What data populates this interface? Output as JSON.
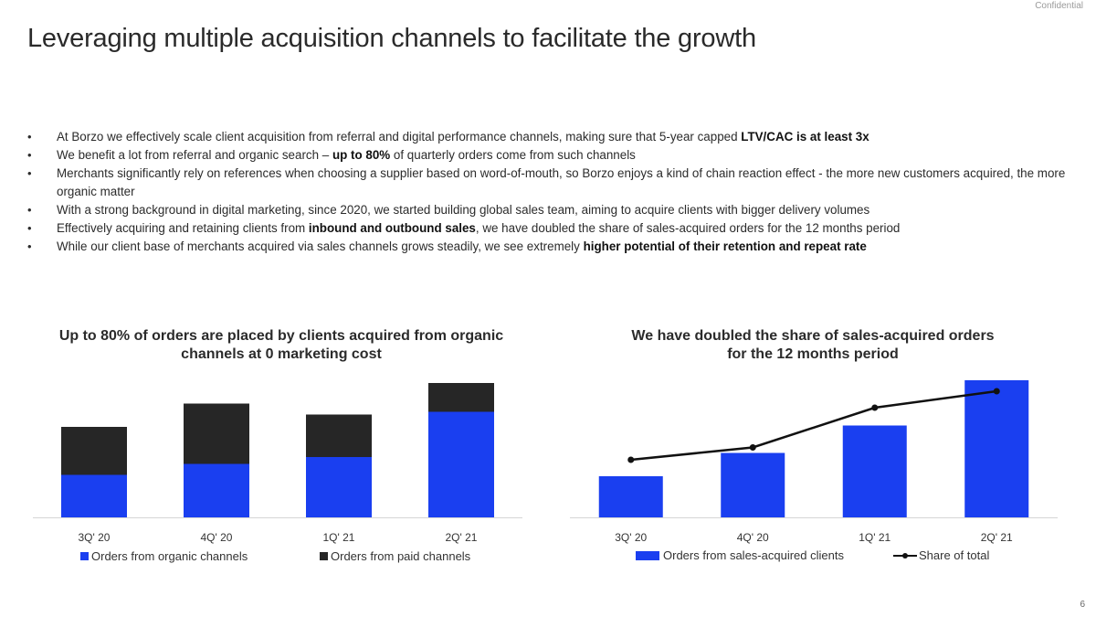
{
  "confidential_label": "Confidential",
  "page_title": "Leveraging multiple acquisition channels to facilitate the growth",
  "page_number": "6",
  "bullets": [
    {
      "before": "At Borzo we effectively scale client acquisition from referral and digital performance channels, making sure that 5-year capped ",
      "bold": "LTV/CAC is at least 3x",
      "after": ""
    },
    {
      "before": "We benefit a lot from referral and organic search – ",
      "bold": "up to 80%",
      "after": " of quarterly orders come from such channels"
    },
    {
      "before": "Merchants significantly rely on references when choosing a supplier based on word-of-mouth, so Borzo enjoys a kind of chain reaction effect - the more new customers acquired, the more organic matter",
      "bold": "",
      "after": ""
    },
    {
      "before": "With a strong background in digital marketing, since 2020, we started building global sales team, aiming to acquire clients with bigger delivery volumes",
      "bold": "",
      "after": ""
    },
    {
      "before": "Effectively acquiring and retaining clients from ",
      "bold": "inbound and outbound sales",
      "after": ", we have doubled the share of sales-acquired orders for the 12 months period"
    },
    {
      "before": "While our client base of merchants acquired via sales channels grows steadily, we see extremely ",
      "bold": "higher potential of their retention and repeat rate",
      "after": ""
    }
  ],
  "colors": {
    "blue": "#1a3ff0",
    "dark": "#262626",
    "axis": "#d6d6d6"
  },
  "chart_data": [
    {
      "type": "bar",
      "stacked": true,
      "title_line1": "Up to 80% of orders are placed by clients acquired from organic",
      "title_line2": "channels at 0 marketing cost",
      "categories": [
        "3Q' 20",
        "4Q' 20",
        "1Q' 21",
        "2Q' 21"
      ],
      "series": [
        {
          "name": "Orders from organic channels",
          "values": [
            31,
            39,
            44,
            77
          ]
        },
        {
          "name": "Orders from paid channels",
          "values": [
            35,
            44,
            31,
            21
          ]
        }
      ],
      "ylim": [
        0,
        100
      ],
      "grid": false,
      "legend": "bottom"
    },
    {
      "type": "bar+line",
      "title_line1": "We have doubled the share of sales-acquired orders",
      "title_line2": "for the 12 months period",
      "categories": [
        "3Q' 20",
        "4Q' 20",
        "1Q' 21",
        "2Q' 21"
      ],
      "series": [
        {
          "name": "Orders from sales-acquired clients",
          "type": "bar",
          "values": [
            30,
            47,
            67,
            100
          ]
        },
        {
          "name": "Share of total",
          "type": "line",
          "values": [
            42,
            51,
            80,
            92
          ]
        }
      ],
      "ylim": [
        0,
        100
      ],
      "grid": false,
      "legend": "bottom"
    }
  ]
}
